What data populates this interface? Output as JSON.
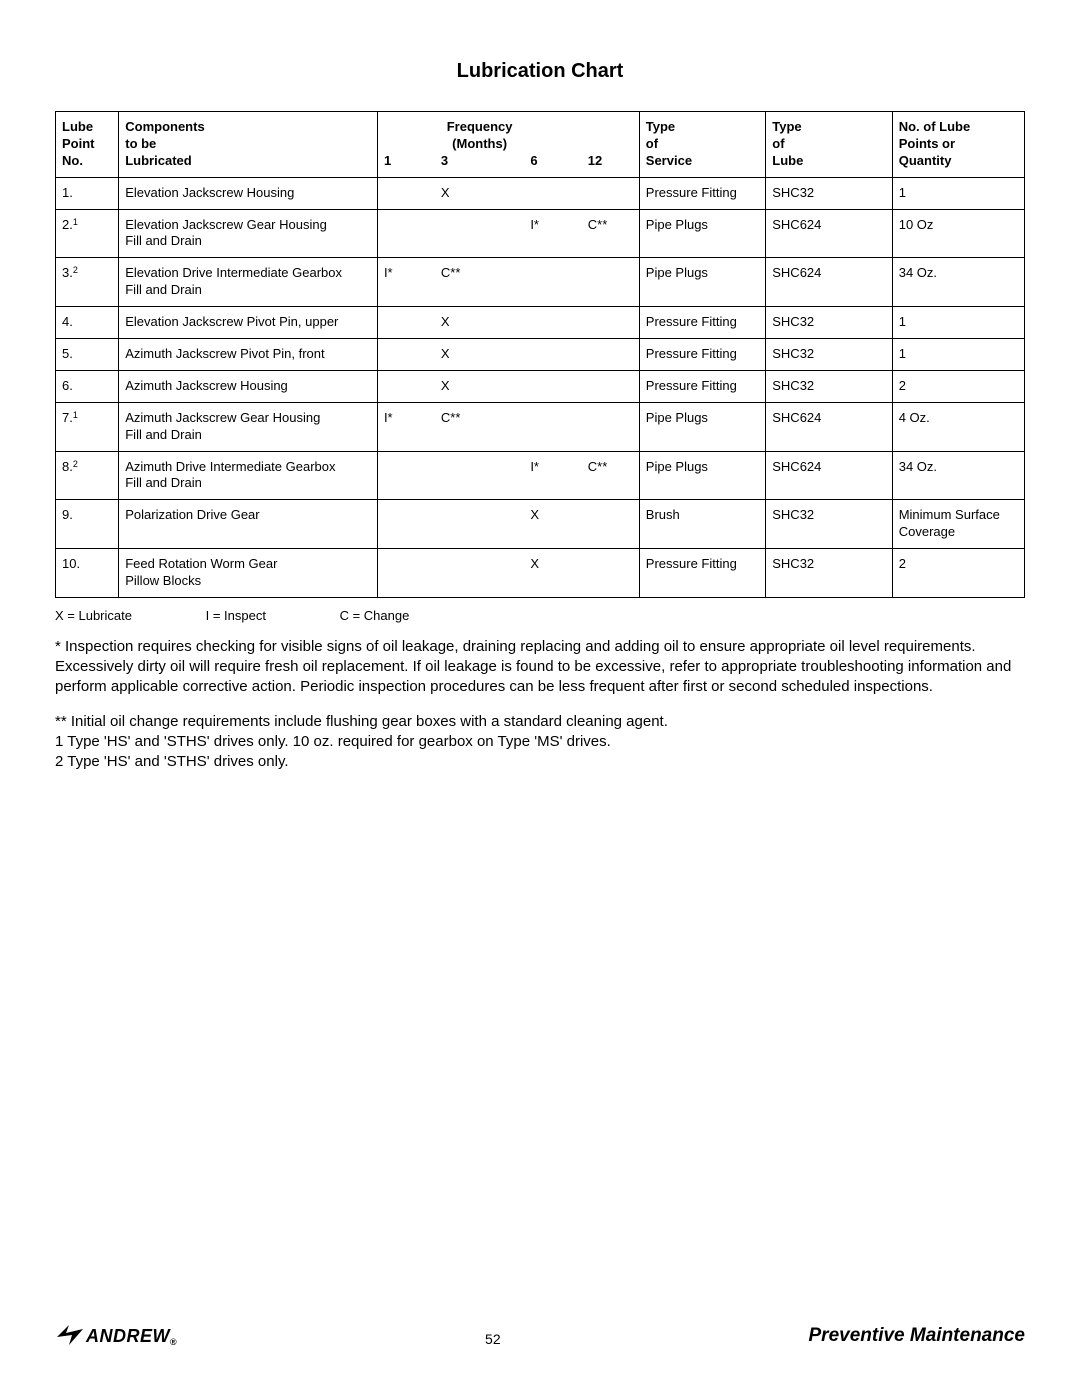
{
  "title": "Lubrication Chart",
  "page_number": "52",
  "section": "Preventive Maintenance",
  "brand": "ANDREW",
  "colors": {
    "text": "#000000",
    "background": "#ffffff",
    "border": "#000000"
  },
  "table": {
    "headers": {
      "no_l1": "Lube",
      "no_l2": "Point",
      "no_l3": "No.",
      "comp_l1": "Components",
      "comp_l2": "to be",
      "comp_l3": "Lubricated",
      "freq_l1": "Frequency",
      "freq_l2": "(Months)",
      "f1": "1",
      "f3": "3",
      "f6": "6",
      "f12": "12",
      "svc_l1": "Type",
      "svc_l2": "of",
      "svc_l3": "Service",
      "lube_l1": "Type",
      "lube_l2": "of",
      "lube_l3": "Lube",
      "qty_l1": "No. of Lube",
      "qty_l2": "Points or",
      "qty_l3": "Quantity"
    },
    "rows": [
      {
        "no": "1.",
        "sup": "",
        "comp": "Elevation Jackscrew Housing",
        "f1": "",
        "f3": "X",
        "f6": "",
        "f12": "",
        "svc": "Pressure Fitting",
        "lube": "SHC32",
        "qty": "1"
      },
      {
        "no": "2.",
        "sup": "1",
        "comp": "Elevation Jackscrew Gear Housing\nFill and Drain",
        "f1": "",
        "f3": "",
        "f6": "I*",
        "f12": "C**",
        "svc": "Pipe Plugs",
        "lube": "SHC624",
        "qty": "10 Oz"
      },
      {
        "no": "3.",
        "sup": "2",
        "comp": "Elevation Drive Intermediate Gearbox\nFill and Drain",
        "f1": "I*",
        "f3": "C**",
        "f6": "",
        "f12": "",
        "svc": "Pipe Plugs",
        "lube": "SHC624",
        "qty": "34 Oz."
      },
      {
        "no": "4.",
        "sup": "",
        "comp": "Elevation Jackscrew Pivot Pin, upper",
        "f1": "",
        "f3": "X",
        "f6": "",
        "f12": "",
        "svc": "Pressure Fitting",
        "lube": "SHC32",
        "qty": "1"
      },
      {
        "no": "5.",
        "sup": "",
        "comp": "Azimuth Jackscrew Pivot Pin, front",
        "f1": "",
        "f3": "X",
        "f6": "",
        "f12": "",
        "svc": "Pressure Fitting",
        "lube": "SHC32",
        "qty": "1"
      },
      {
        "no": "6.",
        "sup": "",
        "comp": "Azimuth Jackscrew Housing",
        "f1": "",
        "f3": "X",
        "f6": "",
        "f12": "",
        "svc": "Pressure Fitting",
        "lube": "SHC32",
        "qty": "2"
      },
      {
        "no": "7.",
        "sup": "1",
        "comp": "Azimuth Jackscrew Gear Housing\nFill and Drain",
        "f1": "I*",
        "f3": "C**",
        "f6": "",
        "f12": "",
        "svc": "Pipe Plugs",
        "lube": "SHC624",
        "qty": "4 Oz."
      },
      {
        "no": "8.",
        "sup": "2",
        "comp": "Azimuth Drive Intermediate Gearbox\nFill and Drain",
        "f1": "",
        "f3": "",
        "f6": "I*",
        "f12": "C**",
        "svc": "Pipe Plugs",
        "lube": "SHC624",
        "qty": "34 Oz."
      },
      {
        "no": "9.",
        "sup": "",
        "comp": "Polarization Drive Gear",
        "f1": "",
        "f3": "",
        "f6": "X",
        "f12": "",
        "svc": "Brush",
        "lube": "SHC32",
        "qty": "Minimum Surface Coverage"
      },
      {
        "no": "10.",
        "sup": "",
        "comp": "Feed Rotation Worm Gear\nPillow Blocks",
        "f1": "",
        "f3": "",
        "f6": "X",
        "f12": "",
        "svc": "Pressure Fitting",
        "lube": "SHC32",
        "qty": "2"
      }
    ]
  },
  "legend": {
    "x": "X = Lubricate",
    "i": "I = Inspect",
    "c": "C = Change"
  },
  "notes": {
    "star": "* Inspection requires checking for visible signs of oil leakage, draining replacing and adding oil to ensure appropriate oil level requirements. Excessively dirty oil will require fresh oil replacement. If oil leakage is found to be excessive, refer to appropriate troubleshooting information and perform applicable corrective action. Periodic inspection procedures can be less frequent after first or second scheduled inspections.",
    "dstar": "** Initial oil change requirements include flushing gear boxes with a standard cleaning agent.",
    "n1": "1 Type 'HS' and 'STHS' drives only. 10 oz. required for gearbox on Type 'MS' drives.",
    "n2": "2 Type 'HS' and 'STHS' drives only."
  }
}
